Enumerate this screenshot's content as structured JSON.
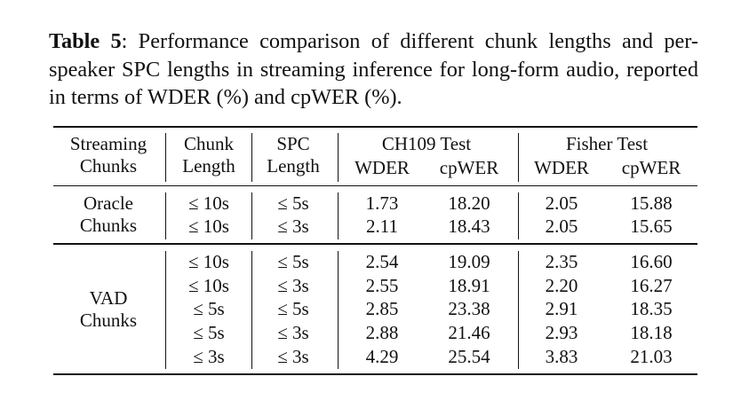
{
  "caption": {
    "label": "Table 5",
    "text": ": Performance comparison of different chunk lengths and per-speaker SPC lengths in streaming inference for long-form audio, reported in terms of WDER (%) and cpWER (%)."
  },
  "table": {
    "header": {
      "streaming": "Streaming Chunks",
      "chunk": "Chunk Length",
      "spc": "SPC Length",
      "groups": [
        "CH109 Test",
        "Fisher Test"
      ],
      "metrics": [
        "WDER",
        "cpWER",
        "WDER",
        "cpWER"
      ]
    },
    "sections": [
      {
        "label": "Oracle Chunks",
        "rows": [
          [
            "≤ 10s",
            "≤ 5s",
            "1.73",
            "18.20",
            "2.05",
            "15.88"
          ],
          [
            "≤ 10s",
            "≤ 3s",
            "2.11",
            "18.43",
            "2.05",
            "15.65"
          ]
        ]
      },
      {
        "label": "VAD Chunks",
        "rows": [
          [
            "≤ 10s",
            "≤ 5s",
            "2.54",
            "19.09",
            "2.35",
            "16.60"
          ],
          [
            "≤ 10s",
            "≤ 3s",
            "2.55",
            "18.91",
            "2.20",
            "16.27"
          ],
          [
            "≤ 5s",
            "≤ 5s",
            "2.85",
            "23.38",
            "2.91",
            "18.35"
          ],
          [
            "≤ 5s",
            "≤ 3s",
            "2.88",
            "21.46",
            "2.93",
            "18.18"
          ],
          [
            "≤ 3s",
            "≤ 3s",
            "4.29",
            "25.54",
            "3.83",
            "21.03"
          ]
        ]
      }
    ]
  }
}
